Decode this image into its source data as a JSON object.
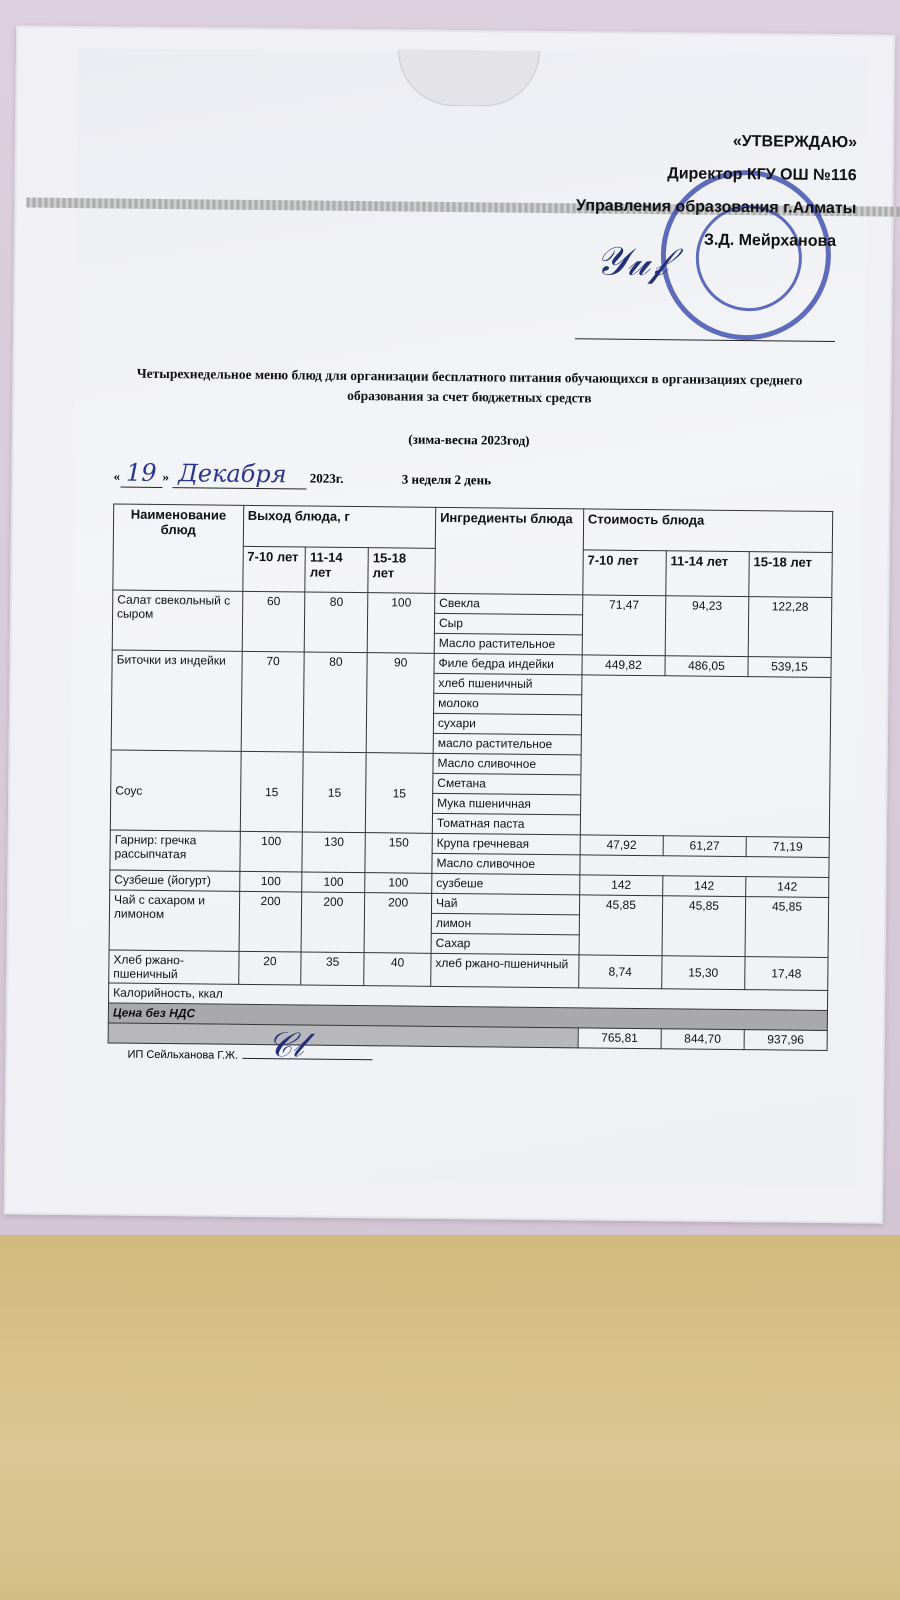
{
  "approval": {
    "heading": "«УТВЕРЖДАЮ»",
    "position": "Директор КГУ ОШ №116",
    "department": "Управления образования г.Алматы",
    "name": "З.Д. Мейрханова"
  },
  "title": "Четырехнедельное меню блюд для организации бесплатного питания   обучающихся в организациях среднего образования за счет бюджетных средств",
  "season": "(зима-весна 2023год)",
  "date": {
    "open_quote": "«",
    "day": "19",
    "close_quote": "»",
    "month": "Декабря",
    "year": "2023г.",
    "week_day": "3 неделя 2 день"
  },
  "table": {
    "headers": {
      "dish": "Наименование блюд",
      "yield": "Выход блюда, г",
      "ingredients": "Ингредиенты блюда",
      "cost": "Стоимость блюда",
      "age1": "7-10 лет",
      "age2": "11-14 лет",
      "age3": "15-18 лет"
    },
    "dishes": [
      {
        "name": "Салат свекольный с сыром",
        "yield": [
          "60",
          "80",
          "100"
        ],
        "ingredients": [
          "Свекла",
          "Сыр",
          "Масло растительное"
        ],
        "cost": [
          "71,47",
          "94,23",
          "122,28"
        ]
      },
      {
        "name": "Биточки из индейки",
        "yield": [
          "70",
          "80",
          "90"
        ],
        "ingredients": [
          "Филе бедра индейки",
          "хлеб пшеничный",
          "молоко",
          "сухари",
          "масло растительное"
        ],
        "cost": [
          "449,82",
          "486,05",
          "539,15"
        ]
      },
      {
        "name": "Соус",
        "yield": [
          "15",
          "15",
          "15"
        ],
        "ingredients": [
          "Масло сливочное",
          "Сметана",
          "Мука пшеничная",
          "Томатная паста"
        ]
      },
      {
        "name": "Гарнир: гречка рассыпчатая",
        "yield": [
          "100",
          "130",
          "150"
        ],
        "ingredients": [
          "Крупа гречневая",
          "Масло сливочное"
        ],
        "cost": [
          "47,92",
          "61,27",
          "71,19"
        ]
      },
      {
        "name": "Сузбеше (йогурт)",
        "yield": [
          "100",
          "100",
          "100"
        ],
        "ingredients": [
          "сузбеше"
        ],
        "cost": [
          "142",
          "142",
          "142"
        ]
      },
      {
        "name": "Чай с сахаром и лимоном",
        "yield": [
          "200",
          "200",
          "200"
        ],
        "ingredients": [
          "Чай",
          "лимон",
          "Сахар"
        ],
        "cost": [
          "45,85",
          "45,85",
          "45,85"
        ]
      },
      {
        "name": "Хлеб ржано-пшеничный",
        "yield": [
          "20",
          "35",
          "40"
        ],
        "ingredients": [
          "хлеб ржано-пшеничный"
        ],
        "cost": [
          "8,74",
          "15,30",
          "17,48"
        ]
      }
    ],
    "calories_label": "Калорийность, ккал",
    "price_label": "Цена без НДС",
    "totals": [
      "765,81",
      "844,70",
      "937,96"
    ]
  },
  "signer": "ИП Сейльханова Г.Ж.",
  "colors": {
    "stamp": "#2d3fa8",
    "board": "#d8cad8",
    "wall": "#d6c08a"
  }
}
